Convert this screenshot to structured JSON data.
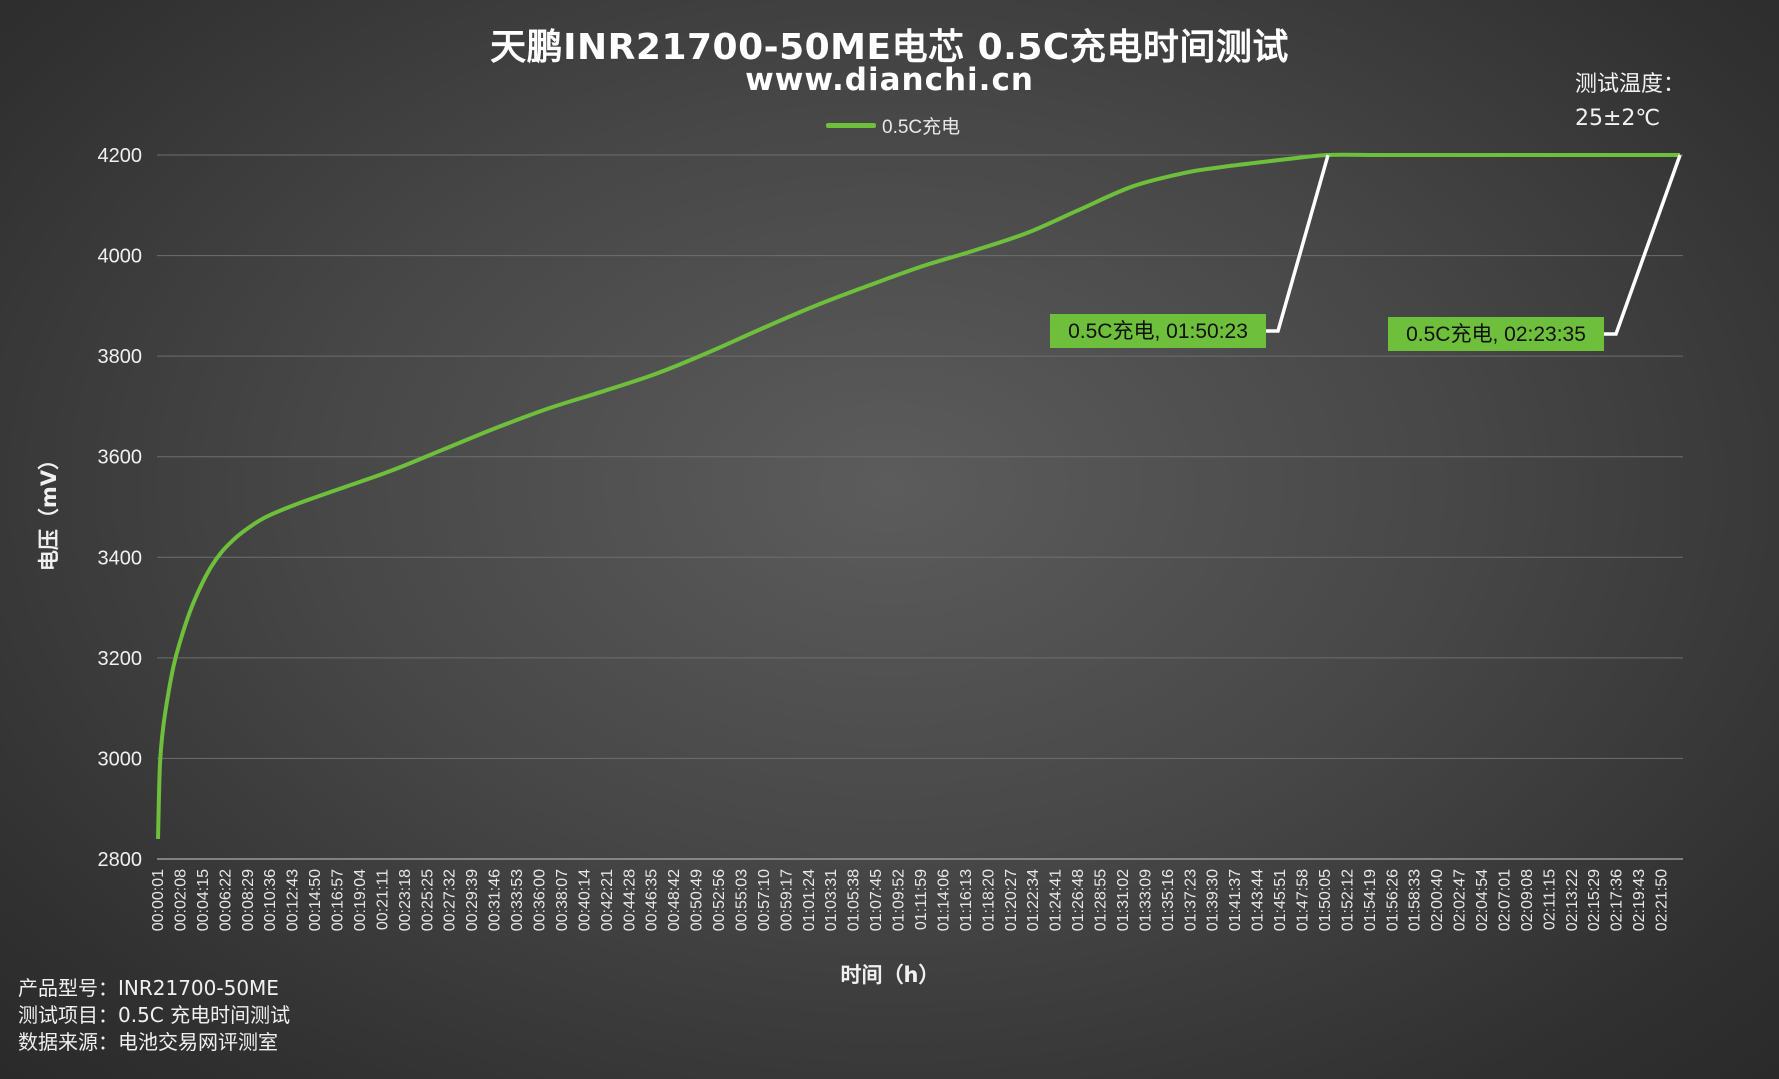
{
  "chart_data": {
    "type": "line",
    "title": "天鹏INR21700-50ME电芯 0.5C充电时间测试",
    "subtitle": "www.dianchi.cn",
    "xlabel": "时间（h）",
    "ylabel": "电压（mV）",
    "ylim": [
      2800,
      4200
    ],
    "yticks": [
      2800,
      3000,
      3200,
      3400,
      3600,
      3800,
      4000,
      4200
    ],
    "grid": true,
    "legend_position": "top-center",
    "series": [
      {
        "name": "0.5C充电",
        "color": "#6ebf3b",
        "x_minutes": [
          0.02,
          0.2,
          0.5,
          1,
          1.5,
          2,
          3,
          4,
          5,
          6,
          7,
          8,
          10,
          13,
          17,
          22,
          27,
          32,
          37,
          42,
          47,
          52,
          57,
          62,
          67,
          72,
          77,
          82,
          87,
          92,
          97,
          100,
          103,
          107,
          110.38,
          115,
          120,
          130,
          140,
          143.58
        ],
        "values": [
          2840,
          2985,
          3060,
          3130,
          3185,
          3225,
          3290,
          3340,
          3380,
          3410,
          3432,
          3450,
          3478,
          3505,
          3535,
          3572,
          3615,
          3658,
          3697,
          3730,
          3765,
          3808,
          3855,
          3900,
          3940,
          3978,
          4010,
          4045,
          4092,
          4138,
          4165,
          4175,
          4183,
          4193,
          4200,
          4200,
          4200,
          4200,
          4200,
          4200
        ]
      }
    ],
    "x_tick_labels": [
      "00:00:01",
      "00:02:08",
      "00:04:15",
      "00:06:22",
      "00:08:29",
      "00:10:36",
      "00:12:43",
      "00:14:50",
      "00:16:57",
      "00:19:04",
      "00:21:11",
      "00:23:18",
      "00:25:25",
      "00:27:32",
      "00:29:39",
      "00:31:46",
      "00:33:53",
      "00:36:00",
      "00:38:07",
      "00:40:14",
      "00:42:21",
      "00:44:28",
      "00:46:35",
      "00:48:42",
      "00:50:49",
      "00:52:56",
      "00:55:03",
      "00:57:10",
      "00:59:17",
      "01:01:24",
      "01:03:31",
      "01:05:38",
      "01:07:45",
      "01:09:52",
      "01:11:59",
      "01:14:06",
      "01:16:13",
      "01:18:20",
      "01:20:27",
      "01:22:34",
      "01:24:41",
      "01:26:48",
      "01:28:55",
      "01:31:02",
      "01:33:09",
      "01:35:16",
      "01:37:23",
      "01:39:30",
      "01:41:37",
      "01:43:44",
      "01:45:51",
      "01:47:58",
      "01:50:05",
      "01:52:12",
      "01:54:19",
      "01:56:26",
      "01:58:33",
      "02:00:40",
      "02:02:47",
      "02:04:54",
      "02:07:01",
      "02:09:08",
      "02:11:15",
      "02:13:22",
      "02:15:29",
      "02:17:36",
      "02:19:43",
      "02:21:50"
    ],
    "annotations": [
      {
        "text": "0.5C充电, 01:50:23",
        "x_minutes": 110.38,
        "y": 4200,
        "box_color": "#6ebf3b"
      },
      {
        "text": "0.5C充电, 02:23:35",
        "x_minutes": 143.58,
        "y": 4200,
        "box_color": "#6ebf3b"
      }
    ]
  },
  "temperature_note": {
    "line1": "测试温度：",
    "line2": "25±2℃"
  },
  "footer": {
    "model_label": "产品型号：",
    "model_value": "INR21700-50ME",
    "test_label": "测试项目：",
    "test_value": "0.5C 充电时间测试",
    "source_label": "数据来源：",
    "source_value": "电池交易网评测室"
  }
}
